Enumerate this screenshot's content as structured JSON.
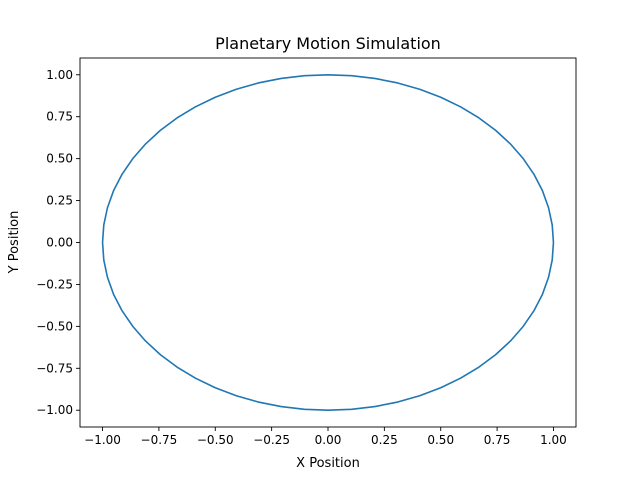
{
  "chart_data": {
    "type": "line",
    "title": "Planetary Motion Simulation",
    "xlabel": "X Position",
    "ylabel": "Y Position",
    "xlim": [
      -1.1,
      1.1
    ],
    "ylim": [
      -1.1,
      1.1
    ],
    "xticks": [
      -1.0,
      -0.75,
      -0.5,
      -0.25,
      0.0,
      0.25,
      0.5,
      0.75,
      1.0
    ],
    "xtick_labels": [
      "−1.00",
      "−0.75",
      "−0.50",
      "−0.25",
      "0.00",
      "0.25",
      "0.50",
      "0.75",
      "1.00"
    ],
    "yticks": [
      -1.0,
      -0.75,
      -0.5,
      -0.25,
      0.0,
      0.25,
      0.5,
      0.75,
      1.0
    ],
    "ytick_labels": [
      "−1.00",
      "−0.75",
      "−0.50",
      "−0.25",
      "0.00",
      "0.25",
      "0.50",
      "0.75",
      "1.00"
    ],
    "grid": false,
    "series": [
      {
        "color": "#1f77b4",
        "points": [
          [
            1.0,
            0.0
          ],
          [
            0.9945,
            0.1045
          ],
          [
            0.9781,
            0.2079
          ],
          [
            0.9511,
            0.309
          ],
          [
            0.9135,
            0.4067
          ],
          [
            0.866,
            0.5
          ],
          [
            0.809,
            0.5878
          ],
          [
            0.7431,
            0.6691
          ],
          [
            0.6691,
            0.7431
          ],
          [
            0.5878,
            0.809
          ],
          [
            0.5,
            0.866
          ],
          [
            0.4067,
            0.9135
          ],
          [
            0.309,
            0.9511
          ],
          [
            0.2079,
            0.9781
          ],
          [
            0.1045,
            0.9945
          ],
          [
            0.0,
            1.0
          ],
          [
            -0.1045,
            0.9945
          ],
          [
            -0.2079,
            0.9781
          ],
          [
            -0.309,
            0.9511
          ],
          [
            -0.4067,
            0.9135
          ],
          [
            -0.5,
            0.866
          ],
          [
            -0.5878,
            0.809
          ],
          [
            -0.6691,
            0.7431
          ],
          [
            -0.7431,
            0.6691
          ],
          [
            -0.809,
            0.5878
          ],
          [
            -0.866,
            0.5
          ],
          [
            -0.9135,
            0.4067
          ],
          [
            -0.9511,
            0.309
          ],
          [
            -0.9781,
            0.2079
          ],
          [
            -0.9945,
            0.1045
          ],
          [
            -1.0,
            0.0
          ],
          [
            -0.9945,
            -0.1045
          ],
          [
            -0.9781,
            -0.2079
          ],
          [
            -0.9511,
            -0.309
          ],
          [
            -0.9135,
            -0.4067
          ],
          [
            -0.866,
            -0.5
          ],
          [
            -0.809,
            -0.5878
          ],
          [
            -0.7431,
            -0.6691
          ],
          [
            -0.6691,
            -0.7431
          ],
          [
            -0.5878,
            -0.809
          ],
          [
            -0.5,
            -0.866
          ],
          [
            -0.4067,
            -0.9135
          ],
          [
            -0.309,
            -0.9511
          ],
          [
            -0.2079,
            -0.9781
          ],
          [
            -0.1045,
            -0.9945
          ],
          [
            0.0,
            -1.0
          ],
          [
            0.1045,
            -0.9945
          ],
          [
            0.2079,
            -0.9781
          ],
          [
            0.309,
            -0.9511
          ],
          [
            0.4067,
            -0.9135
          ],
          [
            0.5,
            -0.866
          ],
          [
            0.5878,
            -0.809
          ],
          [
            0.6691,
            -0.7431
          ],
          [
            0.7431,
            -0.6691
          ],
          [
            0.809,
            -0.5878
          ],
          [
            0.866,
            -0.5
          ],
          [
            0.9135,
            -0.4067
          ],
          [
            0.9511,
            -0.309
          ],
          [
            0.9781,
            -0.2079
          ],
          [
            0.9945,
            -0.1045
          ],
          [
            1.0,
            0.0
          ]
        ]
      }
    ]
  }
}
